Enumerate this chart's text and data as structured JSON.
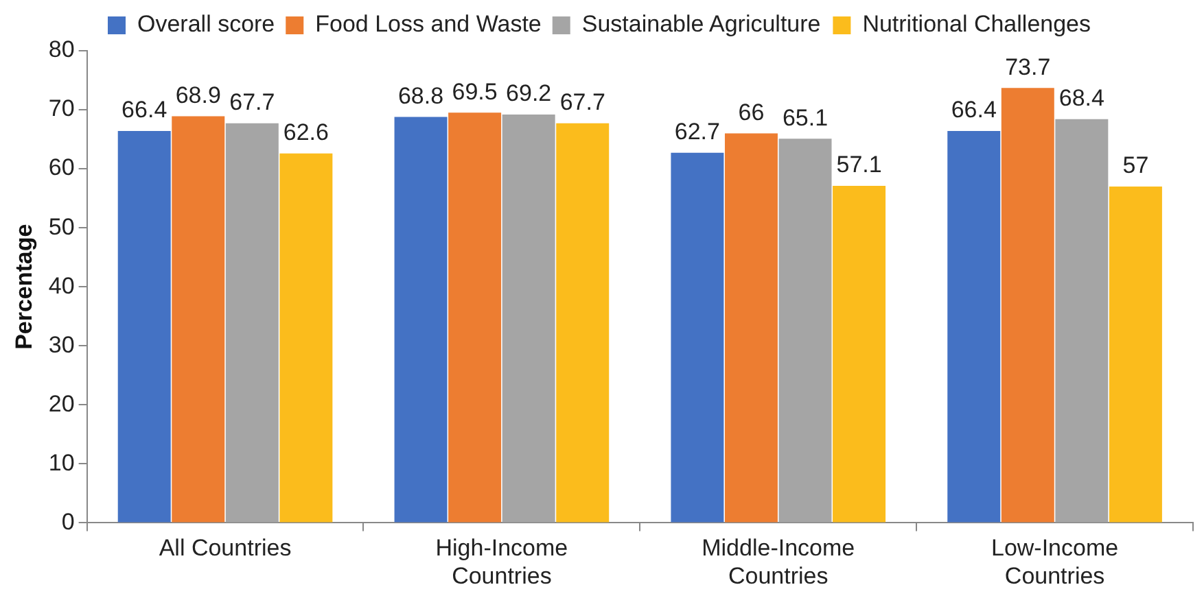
{
  "chart_data": {
    "type": "bar",
    "ylabel": "Percentage",
    "categories": [
      "All Countries",
      "High-Income Countries",
      "Middle-Income Countries",
      "Low-Income Countries"
    ],
    "series": [
      {
        "name": "Overall score",
        "color": "#4472c4",
        "values": [
          66.4,
          68.8,
          62.7,
          66.4
        ]
      },
      {
        "name": "Food Loss and Waste",
        "color": "#ed7d31",
        "values": [
          68.9,
          69.5,
          66,
          73.7
        ]
      },
      {
        "name": "Sustainable Agriculture",
        "color": "#a5a5a5",
        "values": [
          67.7,
          69.2,
          65.1,
          68.4
        ]
      },
      {
        "name": "Nutritional Challenges",
        "color": "#fbbc1c",
        "values": [
          62.6,
          67.7,
          57.1,
          57
        ]
      }
    ],
    "ylim": [
      0,
      80
    ],
    "yticks": [
      0,
      10,
      20,
      30,
      40,
      50,
      60,
      70,
      80
    ],
    "grid": false,
    "legend": "top",
    "data_labels": true
  }
}
